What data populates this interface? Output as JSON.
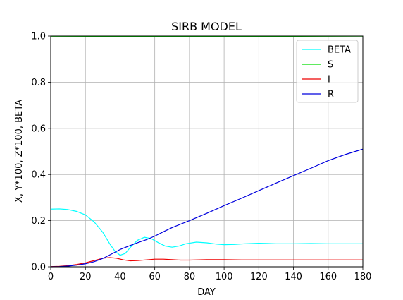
{
  "chart_data": {
    "type": "line",
    "title": "SIRB MODEL",
    "xlabel": "DAY",
    "ylabel": "X, Y*100, Z*100, BETA",
    "xlim": [
      0,
      180
    ],
    "ylim": [
      0,
      1.0
    ],
    "xticks": [
      0,
      20,
      40,
      60,
      80,
      100,
      120,
      140,
      160,
      180
    ],
    "yticks": [
      0.0,
      0.2,
      0.4,
      0.6,
      0.8,
      1.0
    ],
    "ytick_labels": [
      "0.0",
      "0.2",
      "0.4",
      "0.6",
      "0.8",
      "1.0"
    ],
    "grid": true,
    "legend_position": "top-right",
    "series": [
      {
        "name": "BETA",
        "color": "#00ffff",
        "points": [
          [
            0,
            0.25
          ],
          [
            5,
            0.251
          ],
          [
            10,
            0.248
          ],
          [
            15,
            0.24
          ],
          [
            20,
            0.225
          ],
          [
            25,
            0.195
          ],
          [
            30,
            0.15
          ],
          [
            34,
            0.1
          ],
          [
            37,
            0.068
          ],
          [
            40,
            0.05
          ],
          [
            43,
            0.058
          ],
          [
            46,
            0.085
          ],
          [
            50,
            0.115
          ],
          [
            54,
            0.128
          ],
          [
            58,
            0.122
          ],
          [
            62,
            0.105
          ],
          [
            66,
            0.09
          ],
          [
            70,
            0.085
          ],
          [
            74,
            0.09
          ],
          [
            78,
            0.1
          ],
          [
            84,
            0.107
          ],
          [
            90,
            0.104
          ],
          [
            96,
            0.098
          ],
          [
            100,
            0.096
          ],
          [
            106,
            0.097
          ],
          [
            112,
            0.1
          ],
          [
            120,
            0.102
          ],
          [
            130,
            0.1
          ],
          [
            140,
            0.1
          ],
          [
            150,
            0.101
          ],
          [
            160,
            0.1
          ],
          [
            170,
            0.1
          ],
          [
            180,
            0.1
          ]
        ]
      },
      {
        "name": "S",
        "color": "#00dd00",
        "points": [
          [
            0,
            0.999
          ],
          [
            60,
            0.998
          ],
          [
            120,
            0.997
          ],
          [
            180,
            0.996
          ]
        ]
      },
      {
        "name": "I",
        "color": "#ee0000",
        "points": [
          [
            0,
            0.001
          ],
          [
            5,
            0.002
          ],
          [
            10,
            0.005
          ],
          [
            15,
            0.01
          ],
          [
            20,
            0.017
          ],
          [
            25,
            0.027
          ],
          [
            30,
            0.037
          ],
          [
            34,
            0.04
          ],
          [
            38,
            0.037
          ],
          [
            42,
            0.03
          ],
          [
            46,
            0.026
          ],
          [
            50,
            0.027
          ],
          [
            55,
            0.03
          ],
          [
            60,
            0.033
          ],
          [
            65,
            0.033
          ],
          [
            70,
            0.031
          ],
          [
            75,
            0.029
          ],
          [
            80,
            0.029
          ],
          [
            90,
            0.031
          ],
          [
            100,
            0.031
          ],
          [
            110,
            0.03
          ],
          [
            120,
            0.03
          ],
          [
            140,
            0.03
          ],
          [
            160,
            0.03
          ],
          [
            180,
            0.03
          ]
        ]
      },
      {
        "name": "R",
        "color": "#0000dd",
        "points": [
          [
            0,
            0.0
          ],
          [
            5,
            0.001
          ],
          [
            10,
            0.003
          ],
          [
            15,
            0.007
          ],
          [
            20,
            0.013
          ],
          [
            25,
            0.022
          ],
          [
            30,
            0.036
          ],
          [
            35,
            0.055
          ],
          [
            40,
            0.075
          ],
          [
            45,
            0.09
          ],
          [
            50,
            0.104
          ],
          [
            55,
            0.117
          ],
          [
            60,
            0.133
          ],
          [
            65,
            0.152
          ],
          [
            70,
            0.17
          ],
          [
            80,
            0.2
          ],
          [
            90,
            0.232
          ],
          [
            100,
            0.265
          ],
          [
            110,
            0.297
          ],
          [
            120,
            0.33
          ],
          [
            130,
            0.363
          ],
          [
            140,
            0.395
          ],
          [
            150,
            0.427
          ],
          [
            160,
            0.46
          ],
          [
            170,
            0.487
          ],
          [
            180,
            0.51
          ]
        ]
      }
    ]
  }
}
